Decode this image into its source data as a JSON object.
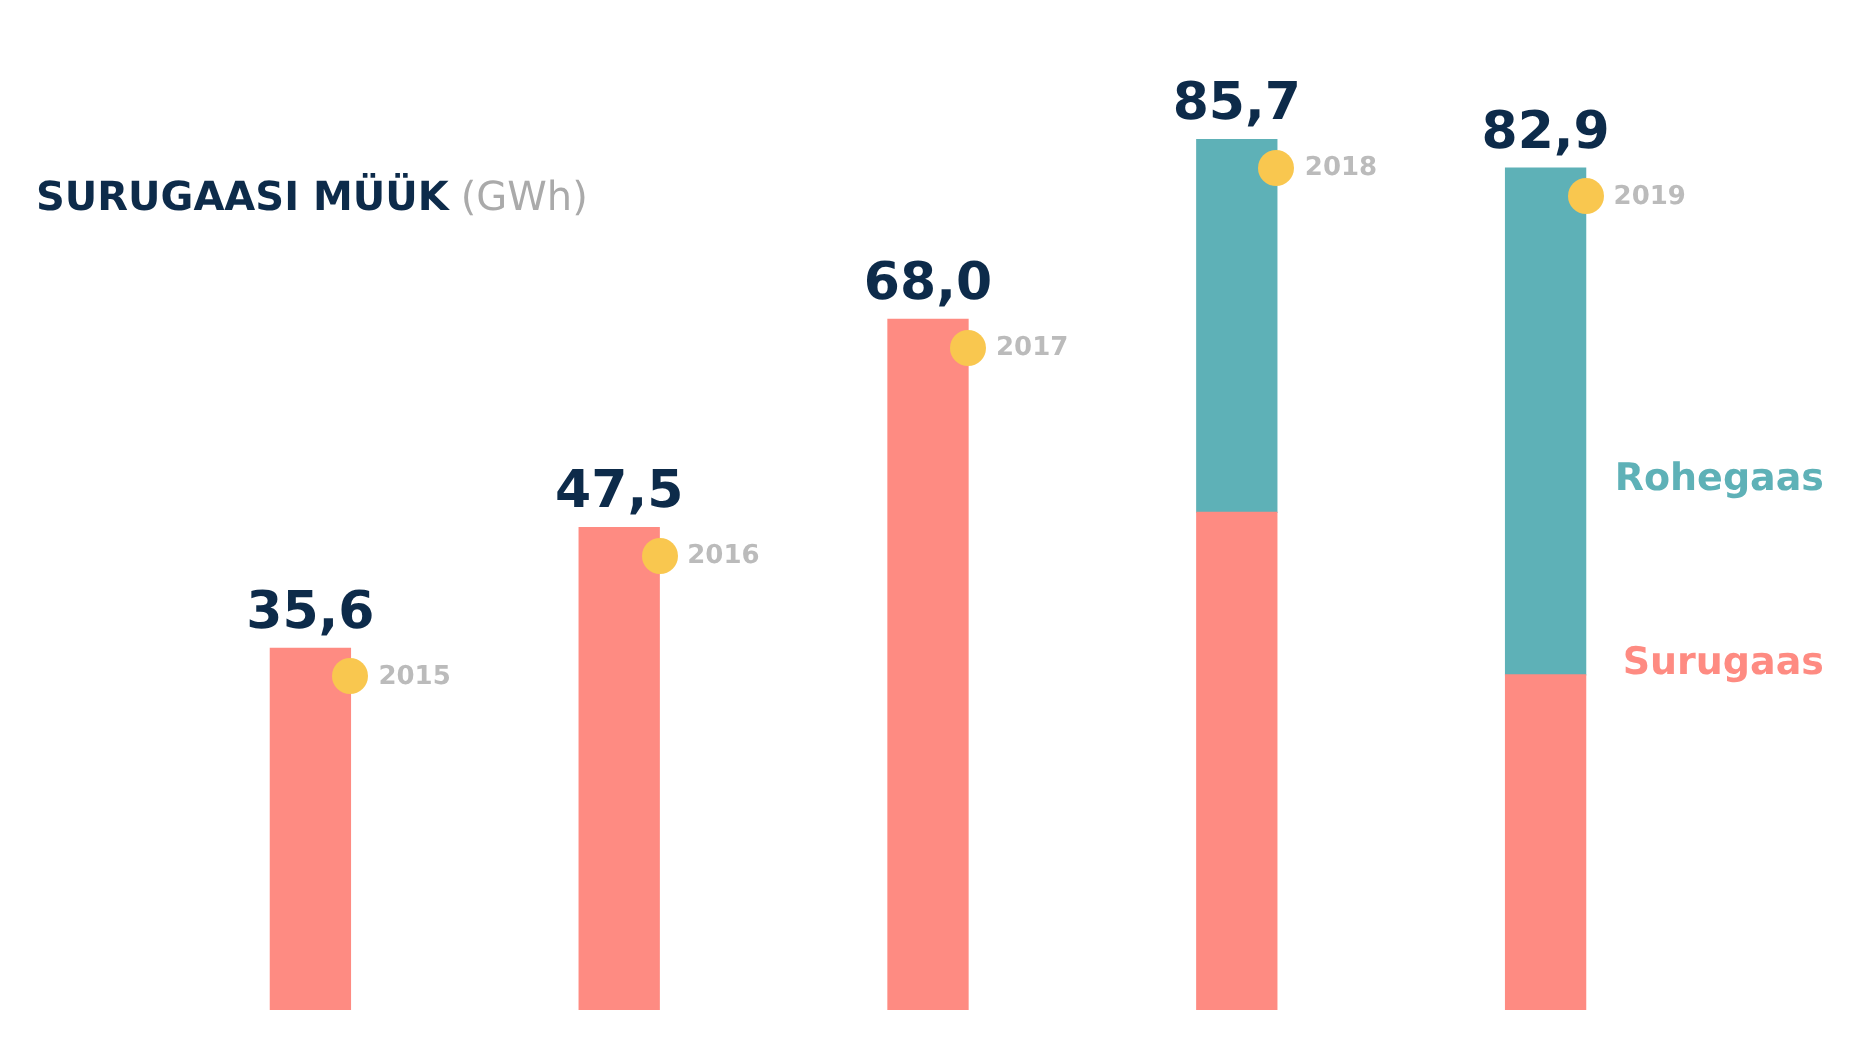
{
  "chart_data": {
    "type": "bar",
    "title": "SURUGAASI MÜÜK",
    "ylabel": "(GWh)",
    "stacked": true,
    "legend": "right",
    "categories": [
      "2015",
      "2016",
      "2017",
      "2018",
      "2019"
    ],
    "series": [
      {
        "name": "Surugaas",
        "color": "#fe8b82",
        "values": [
          35.6,
          47.5,
          68.0,
          49.0,
          33.0
        ],
        "value_labels": [
          "35,6",
          "47,5",
          "68,0",
          null,
          null
        ]
      },
      {
        "name": "Rohegaas",
        "color": "#5eb1b7",
        "values": [
          null,
          null,
          null,
          36.7,
          49.9
        ]
      }
    ],
    "totals": [
      null,
      null,
      null,
      "85,7",
      "82,9"
    ]
  }
}
